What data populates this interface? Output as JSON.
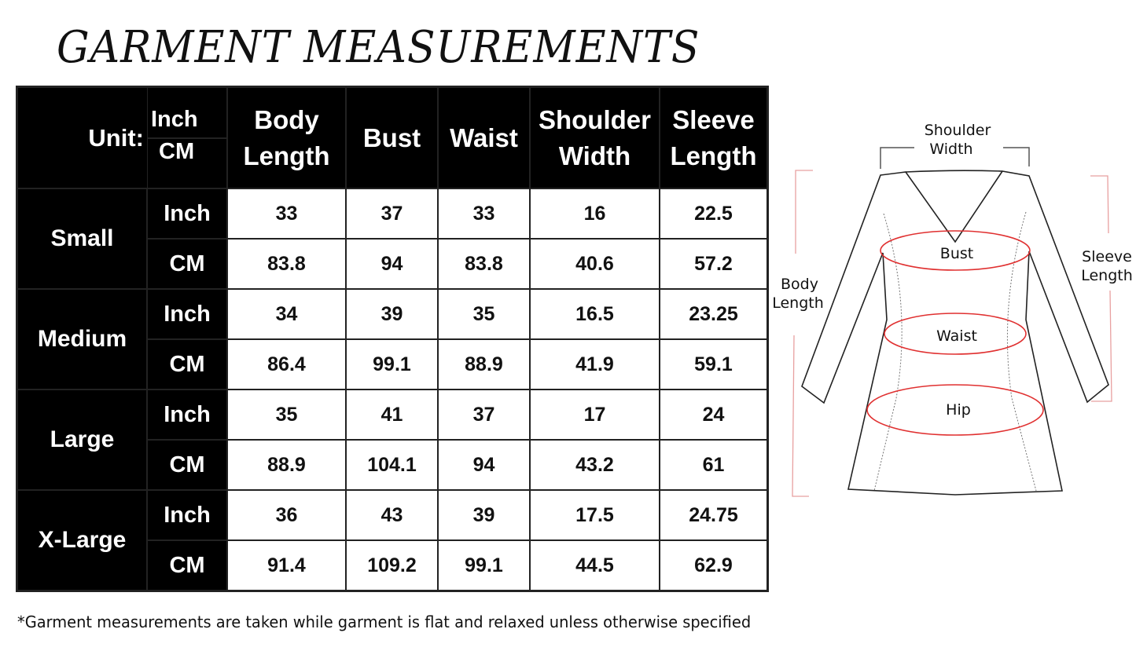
{
  "title": "GARMENT MEASUREMENTS",
  "table": {
    "unit_label": "Unit:",
    "unit_inch": "Inch",
    "unit_cm": "CM",
    "columns": [
      "Body\nLength",
      "Bust",
      "Waist",
      "Shoulder\nWidth",
      "Sleeve\nLength"
    ],
    "sizes": [
      {
        "name": "Small",
        "inch": [
          "33",
          "37",
          "33",
          "16",
          "22.5"
        ],
        "cm": [
          "83.8",
          "94",
          "83.8",
          "40.6",
          "57.2"
        ]
      },
      {
        "name": "Medium",
        "inch": [
          "34",
          "39",
          "35",
          "16.5",
          "23.25"
        ],
        "cm": [
          "86.4",
          "99.1",
          "88.9",
          "41.9",
          "59.1"
        ]
      },
      {
        "name": "Large",
        "inch": [
          "35",
          "41",
          "37",
          "17",
          "24"
        ],
        "cm": [
          "88.9",
          "104.1",
          "94",
          "43.2",
          "61"
        ]
      },
      {
        "name": "X-Large",
        "inch": [
          "36",
          "43",
          "39",
          "17.5",
          "24.75"
        ],
        "cm": [
          "91.4",
          "109.2",
          "99.1",
          "44.5",
          "62.9"
        ]
      }
    ]
  },
  "diagram": {
    "shoulder_width": [
      "Shoulder",
      "Width"
    ],
    "body_length": [
      "Body",
      "Length"
    ],
    "sleeve_length": [
      "Sleeve",
      "Length"
    ],
    "bust": "Bust",
    "waist": "Waist",
    "hip": "Hip",
    "measure_color": "#e03030"
  },
  "footnote": "*Garment measurements are taken while garment is flat and relaxed unless otherwise specified"
}
